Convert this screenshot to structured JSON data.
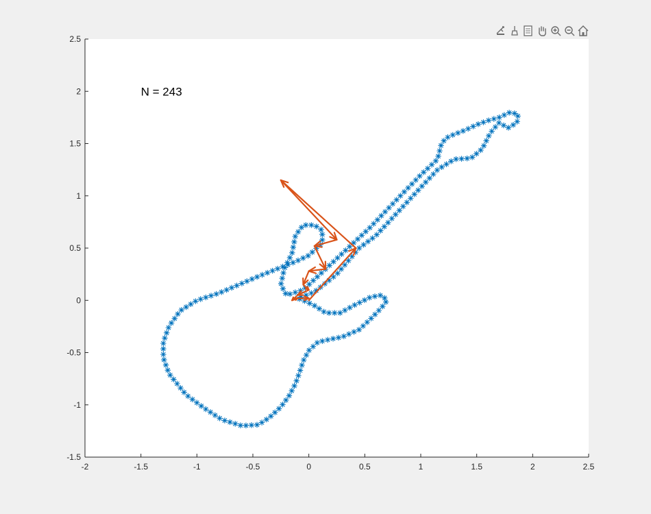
{
  "toolbar": {
    "items": [
      {
        "name": "export-icon"
      },
      {
        "name": "brush-icon"
      },
      {
        "name": "datatip-icon"
      },
      {
        "name": "pan-hand-icon"
      },
      {
        "name": "zoom-in-icon"
      },
      {
        "name": "zoom-out-icon"
      },
      {
        "name": "home-icon"
      }
    ]
  },
  "colors": {
    "figure_bg": "#f0f0f0",
    "axes_bg": "#ffffff",
    "markers": "#0072bd",
    "arrows": "#d95319",
    "axis": "#262626"
  },
  "chart_data": {
    "type": "scatter",
    "title": "",
    "xlabel": "",
    "ylabel": "",
    "xlim": [
      -2,
      2.5
    ],
    "ylim": [
      -1.5,
      2.5
    ],
    "grid": false,
    "xticks": [
      -2,
      -1.5,
      -1,
      -0.5,
      0,
      0.5,
      1,
      1.5,
      2,
      2.5
    ],
    "xtick_labels": [
      "-2",
      "-1.5",
      "-1",
      "-0.5",
      "0",
      "0.5",
      "1",
      "1.5",
      "2",
      "2.5"
    ],
    "yticks": [
      -1.5,
      -1,
      -0.5,
      0,
      0.5,
      1,
      1.5,
      2,
      2.5
    ],
    "ytick_labels": [
      "-1.5",
      "-1",
      "-0.5",
      "0",
      "0.5",
      "1",
      "1.5",
      "2",
      "2.5"
    ],
    "annotation": {
      "text": "N = 243",
      "x": -1.5,
      "y": 2.0
    },
    "series": [
      {
        "type": "scatter",
        "marker": "*",
        "outline": [
          [
            0.45,
            0.5
          ],
          [
            0.6,
            0.62
          ],
          [
            0.8,
            0.85
          ],
          [
            1.0,
            1.08
          ],
          [
            1.15,
            1.25
          ],
          [
            1.3,
            1.35
          ],
          [
            1.45,
            1.36
          ],
          [
            1.55,
            1.45
          ],
          [
            1.62,
            1.6
          ],
          [
            1.7,
            1.7
          ],
          [
            1.78,
            1.65
          ],
          [
            1.86,
            1.7
          ],
          [
            1.87,
            1.78
          ],
          [
            1.8,
            1.8
          ],
          [
            1.7,
            1.75
          ],
          [
            1.6,
            1.72
          ],
          [
            1.5,
            1.68
          ],
          [
            1.4,
            1.63
          ],
          [
            1.28,
            1.58
          ],
          [
            1.22,
            1.55
          ],
          [
            1.18,
            1.48
          ],
          [
            1.15,
            1.35
          ],
          [
            1.0,
            1.2
          ],
          [
            0.8,
            0.98
          ],
          [
            0.55,
            0.7
          ],
          [
            0.25,
            0.4
          ],
          [
            0.05,
            0.2
          ],
          [
            -0.05,
            0.1
          ],
          [
            -0.2,
            0.05
          ],
          [
            -0.25,
            0.15
          ],
          [
            -0.22,
            0.3
          ],
          [
            -0.15,
            0.45
          ],
          [
            -0.12,
            0.62
          ],
          [
            -0.05,
            0.72
          ],
          [
            0.05,
            0.72
          ],
          [
            0.12,
            0.67
          ],
          [
            0.12,
            0.55
          ],
          [
            0.0,
            0.43
          ],
          [
            -0.12,
            0.37
          ],
          [
            -0.45,
            0.23
          ],
          [
            -0.8,
            0.07
          ],
          [
            -1.0,
            0.0
          ],
          [
            -1.15,
            -0.1
          ],
          [
            -1.25,
            -0.25
          ],
          [
            -1.3,
            -0.4
          ],
          [
            -1.3,
            -0.55
          ],
          [
            -1.25,
            -0.7
          ],
          [
            -1.1,
            -0.9
          ],
          [
            -0.95,
            -1.02
          ],
          [
            -0.78,
            -1.14
          ],
          [
            -0.6,
            -1.2
          ],
          [
            -0.45,
            -1.19
          ],
          [
            -0.35,
            -1.12
          ],
          [
            -0.25,
            -1.02
          ],
          [
            -0.18,
            -0.92
          ],
          [
            -0.12,
            -0.8
          ],
          [
            -0.08,
            -0.68
          ],
          [
            -0.05,
            -0.58
          ],
          [
            0.0,
            -0.48
          ],
          [
            0.08,
            -0.4
          ],
          [
            0.2,
            -0.37
          ],
          [
            0.3,
            -0.35
          ],
          [
            0.45,
            -0.28
          ],
          [
            0.55,
            -0.18
          ],
          [
            0.65,
            -0.07
          ],
          [
            0.7,
            0.0
          ],
          [
            0.65,
            0.05
          ],
          [
            0.55,
            0.03
          ],
          [
            0.4,
            -0.05
          ],
          [
            0.28,
            -0.12
          ],
          [
            0.15,
            -0.12
          ],
          [
            0.05,
            -0.05
          ],
          [
            -0.05,
            0.0
          ],
          [
            -0.1,
            0.02
          ],
          [
            0.05,
            0.08
          ],
          [
            0.25,
            0.25
          ],
          [
            0.45,
            0.5
          ]
        ]
      },
      {
        "type": "line",
        "arrows": true,
        "points": [
          [
            0.0,
            0.0
          ],
          [
            0.42,
            0.5
          ],
          [
            -0.25,
            1.15
          ],
          [
            0.25,
            0.58
          ],
          [
            0.05,
            0.52
          ],
          [
            0.15,
            0.3
          ],
          [
            0.0,
            0.28
          ],
          [
            -0.05,
            0.15
          ],
          [
            0.0,
            0.1
          ],
          [
            -0.1,
            0.05
          ],
          [
            -0.15,
            0.0
          ],
          [
            -0.1,
            0.02
          ],
          [
            0.0,
            0.02
          ]
        ]
      }
    ]
  }
}
